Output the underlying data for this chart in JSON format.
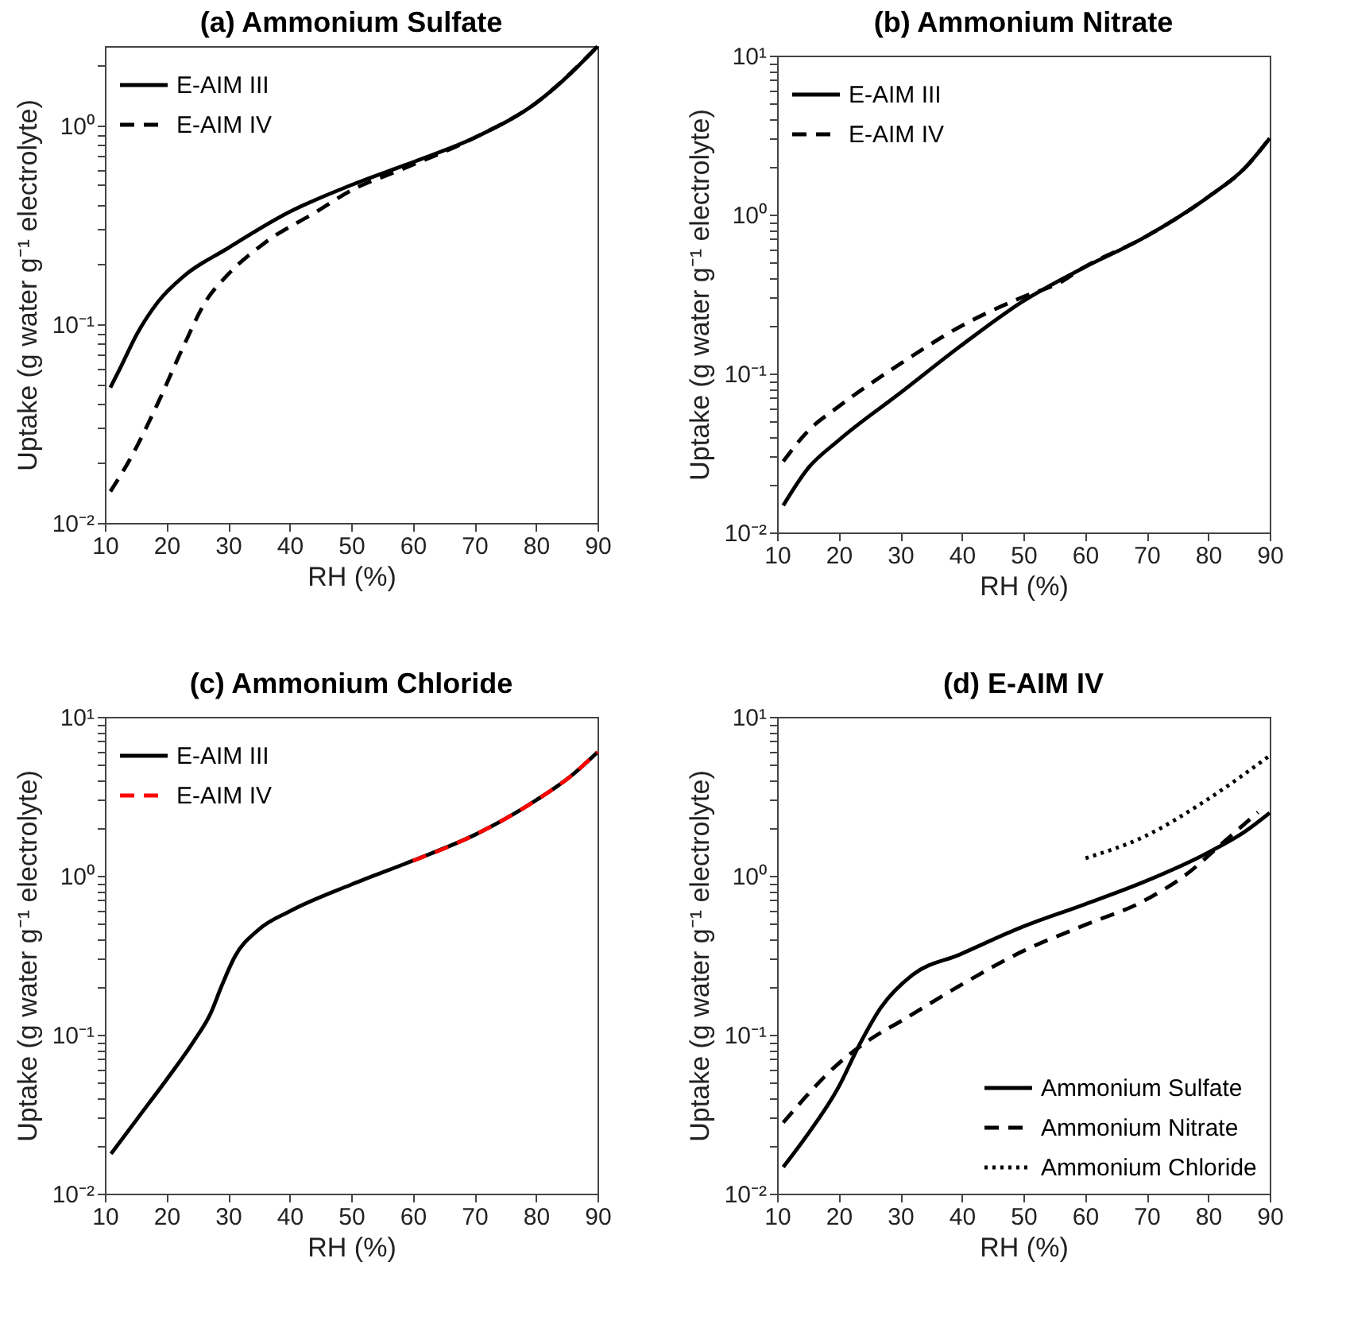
{
  "chart_data": [
    {
      "type": "line",
      "title": "(a) Ammonium Sulfate",
      "xlabel": "RH (%)",
      "ylabel": "Uptake (g water g⁻¹ electrolyte)",
      "log": "y",
      "legend": "top left",
      "xlim": [
        10,
        90
      ],
      "xticks": [
        10,
        20,
        30,
        40,
        50,
        60,
        70,
        80,
        90
      ],
      "ylim": [
        0.01,
        2.5
      ],
      "yticks": [
        {
          "value": 0.01,
          "label": "10⁻²"
        },
        {
          "value": 0.02,
          "label": null
        },
        {
          "value": 0.03,
          "label": null
        },
        {
          "value": 0.04,
          "label": null
        },
        {
          "value": 0.05,
          "label": null
        },
        {
          "value": 0.06,
          "label": null
        },
        {
          "value": 0.07,
          "label": null
        },
        {
          "value": 0.08,
          "label": null
        },
        {
          "value": 0.09,
          "label": null
        },
        {
          "value": 0.1,
          "label": "10⁻¹"
        },
        {
          "value": 0.2,
          "label": null
        },
        {
          "value": 0.3,
          "label": null
        },
        {
          "value": 0.4,
          "label": null
        },
        {
          "value": 0.5,
          "label": null
        },
        {
          "value": 0.6,
          "label": null
        },
        {
          "value": 0.7,
          "label": null
        },
        {
          "value": 0.8,
          "label": null
        },
        {
          "value": 0.9,
          "label": null
        },
        {
          "value": 1,
          "label": "10⁰"
        },
        {
          "value": 2,
          "label": null
        }
      ],
      "series": [
        {
          "name": "E-AIM III",
          "color": "#000000",
          "line_style": "solid",
          "x": [
            10.9,
            12.6,
            15.2,
            18.6,
            22.9,
            29.8,
            40.1,
            50,
            59.9,
            70.2,
            80.1,
            85.7,
            90
          ],
          "values": [
            0.048,
            0.061,
            0.089,
            0.129,
            0.175,
            0.239,
            0.368,
            0.5,
            0.65,
            0.87,
            1.3,
            1.83,
            2.49
          ]
        },
        {
          "name": "E-AIM IV",
          "color": "#000000",
          "line_style": "dashed",
          "x": [
            10.9,
            14.3,
            18.6,
            22.9,
            26.3,
            29.8,
            35.8,
            44.4,
            50,
            58.2,
            70.2,
            80.1,
            90
          ],
          "values": [
            0.0144,
            0.0215,
            0.04,
            0.079,
            0.129,
            0.175,
            0.254,
            0.368,
            0.47,
            0.6,
            0.87,
            1.3,
            2.49
          ]
        }
      ]
    },
    {
      "type": "line",
      "title": "(b) Ammonium Nitrate",
      "xlabel": "RH (%)",
      "ylabel": "Uptake (g water g⁻¹ electrolyte)",
      "log": "y",
      "legend": "top left",
      "xlim": [
        10,
        90
      ],
      "xticks": [
        10,
        20,
        30,
        40,
        50,
        60,
        70,
        80,
        90
      ],
      "ylim": [
        0.01,
        10
      ],
      "yticks": [
        {
          "value": 0.01,
          "label": "10⁻²"
        },
        {
          "value": 0.02,
          "label": null
        },
        {
          "value": 0.03,
          "label": null
        },
        {
          "value": 0.04,
          "label": null
        },
        {
          "value": 0.05,
          "label": null
        },
        {
          "value": 0.06,
          "label": null
        },
        {
          "value": 0.07,
          "label": null
        },
        {
          "value": 0.08,
          "label": null
        },
        {
          "value": 0.09,
          "label": null
        },
        {
          "value": 0.1,
          "label": "10⁻¹"
        },
        {
          "value": 0.2,
          "label": null
        },
        {
          "value": 0.3,
          "label": null
        },
        {
          "value": 0.4,
          "label": null
        },
        {
          "value": 0.5,
          "label": null
        },
        {
          "value": 0.6,
          "label": null
        },
        {
          "value": 0.7,
          "label": null
        },
        {
          "value": 0.8,
          "label": null
        },
        {
          "value": 0.9,
          "label": null
        },
        {
          "value": 1,
          "label": "10⁰"
        },
        {
          "value": 2,
          "label": null
        },
        {
          "value": 3,
          "label": null
        },
        {
          "value": 4,
          "label": null
        },
        {
          "value": 5,
          "label": null
        },
        {
          "value": 6,
          "label": null
        },
        {
          "value": 7,
          "label": null
        },
        {
          "value": 8,
          "label": null
        },
        {
          "value": 9,
          "label": null
        },
        {
          "value": 10,
          "label": "10¹"
        }
      ],
      "series": [
        {
          "name": "E-AIM III",
          "color": "#000000",
          "line_style": "solid",
          "x": [
            11,
            14.9,
            20,
            30.3,
            39.7,
            50,
            59.4,
            69.7,
            80,
            86,
            90
          ],
          "values": [
            0.0148,
            0.025,
            0.038,
            0.077,
            0.148,
            0.286,
            0.455,
            0.72,
            1.29,
            1.97,
            3.02
          ]
        },
        {
          "name": "E-AIM IV",
          "color": "#000000",
          "line_style": "dashed",
          "x": [
            11,
            14.9,
            20,
            30.3,
            39.7,
            50,
            56,
            59.4,
            69.7,
            80,
            86,
            90
          ],
          "values": [
            0.028,
            0.043,
            0.062,
            0.117,
            0.197,
            0.304,
            0.375,
            0.455,
            0.72,
            1.29,
            1.97,
            3.02
          ]
        }
      ]
    },
    {
      "type": "line",
      "title": "(c) Ammonium Chloride",
      "xlabel": "RH (%)",
      "ylabel": "Uptake (g water g⁻¹ electrolyte)",
      "log": "y",
      "legend": "top left",
      "xlim": [
        10,
        90
      ],
      "xticks": [
        10,
        20,
        30,
        40,
        50,
        60,
        70,
        80,
        90
      ],
      "ylim": [
        0.01,
        10
      ],
      "yticks": [
        {
          "value": 0.01,
          "label": "10⁻²"
        },
        {
          "value": 0.02,
          "label": null
        },
        {
          "value": 0.03,
          "label": null
        },
        {
          "value": 0.04,
          "label": null
        },
        {
          "value": 0.05,
          "label": null
        },
        {
          "value": 0.06,
          "label": null
        },
        {
          "value": 0.07,
          "label": null
        },
        {
          "value": 0.08,
          "label": null
        },
        {
          "value": 0.09,
          "label": null
        },
        {
          "value": 0.1,
          "label": "10⁻¹"
        },
        {
          "value": 0.2,
          "label": null
        },
        {
          "value": 0.3,
          "label": null
        },
        {
          "value": 0.4,
          "label": null
        },
        {
          "value": 0.5,
          "label": null
        },
        {
          "value": 0.6,
          "label": null
        },
        {
          "value": 0.7,
          "label": null
        },
        {
          "value": 0.8,
          "label": null
        },
        {
          "value": 0.9,
          "label": null
        },
        {
          "value": 1,
          "label": "10⁰"
        },
        {
          "value": 2,
          "label": null
        },
        {
          "value": 3,
          "label": null
        },
        {
          "value": 4,
          "label": null
        },
        {
          "value": 5,
          "label": null
        },
        {
          "value": 6,
          "label": null
        },
        {
          "value": 7,
          "label": null
        },
        {
          "value": 8,
          "label": null
        },
        {
          "value": 9,
          "label": null
        },
        {
          "value": 10,
          "label": "10¹"
        }
      ],
      "series": [
        {
          "name": "E-AIM III",
          "color": "#000000",
          "line_style": "solid",
          "x": [
            11,
            15.2,
            20.3,
            24.6,
            27.2,
            28.9,
            31.1,
            34.9,
            40.1,
            50,
            59.9,
            70.2,
            80.1,
            85.7,
            90
          ],
          "values": [
            0.0178,
            0.0294,
            0.054,
            0.093,
            0.137,
            0.2,
            0.31,
            0.456,
            0.6,
            0.88,
            1.24,
            1.82,
            3.0,
            4.25,
            6.0
          ]
        },
        {
          "name": "E-AIM IV",
          "color": "#ff0000",
          "line_style": "dashed",
          "x": [
            60,
            70.2,
            80.1,
            85.7,
            90
          ],
          "values": [
            1.24,
            1.82,
            3.0,
            4.25,
            6.0
          ]
        }
      ]
    },
    {
      "type": "line",
      "title": "(d) E-AIM IV",
      "xlabel": "RH (%)",
      "ylabel": "Uptake (g water g⁻¹ electrolyte)",
      "log": "y",
      "legend": "bottom right",
      "xlim": [
        10,
        90
      ],
      "xticks": [
        10,
        20,
        30,
        40,
        50,
        60,
        70,
        80,
        90
      ],
      "ylim": [
        0.01,
        10
      ],
      "yticks": [
        {
          "value": 0.01,
          "label": "10⁻²"
        },
        {
          "value": 0.02,
          "label": null
        },
        {
          "value": 0.03,
          "label": null
        },
        {
          "value": 0.04,
          "label": null
        },
        {
          "value": 0.05,
          "label": null
        },
        {
          "value": 0.06,
          "label": null
        },
        {
          "value": 0.07,
          "label": null
        },
        {
          "value": 0.08,
          "label": null
        },
        {
          "value": 0.09,
          "label": null
        },
        {
          "value": 0.1,
          "label": "10⁻¹"
        },
        {
          "value": 0.2,
          "label": null
        },
        {
          "value": 0.3,
          "label": null
        },
        {
          "value": 0.4,
          "label": null
        },
        {
          "value": 0.5,
          "label": null
        },
        {
          "value": 0.6,
          "label": null
        },
        {
          "value": 0.7,
          "label": null
        },
        {
          "value": 0.8,
          "label": null
        },
        {
          "value": 0.9,
          "label": null
        },
        {
          "value": 1,
          "label": "10⁰"
        },
        {
          "value": 2,
          "label": null
        },
        {
          "value": 3,
          "label": null
        },
        {
          "value": 4,
          "label": null
        },
        {
          "value": 5,
          "label": null
        },
        {
          "value": 6,
          "label": null
        },
        {
          "value": 7,
          "label": null
        },
        {
          "value": 8,
          "label": null
        },
        {
          "value": 9,
          "label": null
        },
        {
          "value": 10,
          "label": "10¹"
        }
      ],
      "series": [
        {
          "name": "Ammonium Sulfate",
          "color": "#000000",
          "line_style": "solid",
          "x": [
            11,
            14.9,
            20,
            23.4,
            26.9,
            32,
            39.7,
            50,
            59.4,
            69.7,
            80,
            86,
            90
          ],
          "values": [
            0.0147,
            0.0234,
            0.047,
            0.087,
            0.149,
            0.238,
            0.32,
            0.48,
            0.65,
            0.92,
            1.4,
            1.9,
            2.49
          ]
        },
        {
          "name": "Ammonium Nitrate",
          "color": "#000000",
          "line_style": "dashed",
          "x": [
            11,
            20,
            25.2,
            30.3,
            39.7,
            50,
            59.4,
            69.7,
            76.6,
            82.6,
            88.1
          ],
          "values": [
            0.028,
            0.066,
            0.094,
            0.123,
            0.204,
            0.337,
            0.48,
            0.7,
            1.03,
            1.64,
            2.51
          ]
        },
        {
          "name": "Ammonium Chloride",
          "color": "#000000",
          "line_style": "dotted",
          "x": [
            60.1,
            69.7,
            80,
            90
          ],
          "values": [
            1.29,
            1.77,
            3.04,
            5.7
          ]
        }
      ]
    }
  ]
}
